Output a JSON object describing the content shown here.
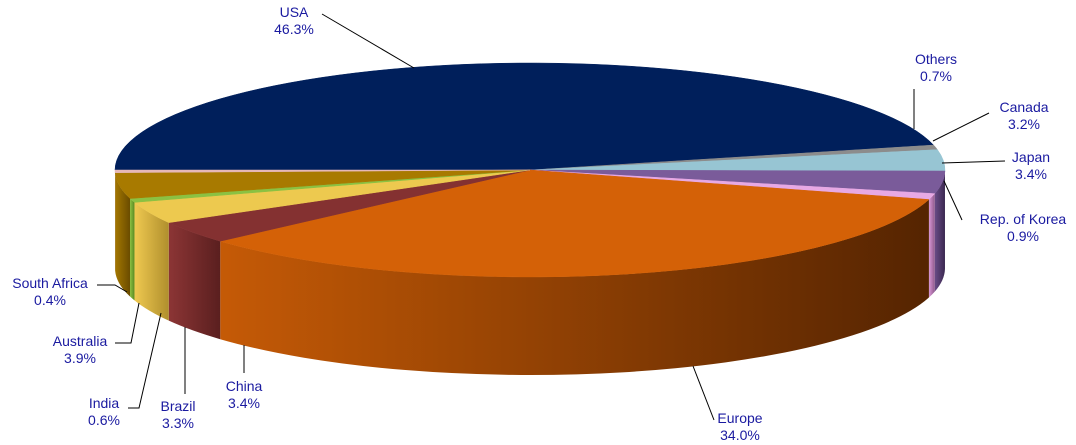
{
  "chart_data": {
    "type": "pie",
    "style": "3d",
    "start_angle_deg": 180,
    "direction": "clockwise",
    "slices": [
      {
        "label": "USA",
        "pct_text": "46.3%",
        "value": 46.3,
        "color": "#001f5b",
        "side": "#001a4e",
        "side_dark": "#000c28"
      },
      {
        "label": "Others",
        "pct_text": "0.7%",
        "value": 0.7,
        "color": "#8c8c8c",
        "side": "#7a7a7a",
        "side_dark": "#4a4a4a"
      },
      {
        "label": "Canada",
        "pct_text": "3.2%",
        "value": 3.2,
        "color": "#97c5d3",
        "side": "#86b4c2",
        "side_dark": "#4f7481"
      },
      {
        "label": "Japan",
        "pct_text": "3.4%",
        "value": 3.4,
        "color": "#7a5b9a",
        "side": "#6a4c87",
        "side_dark": "#3a2850"
      },
      {
        "label": "Rep. of Korea",
        "pct_text": "0.9%",
        "value": 0.9,
        "color": "#e7a9e4",
        "side": "#d996d6",
        "side_dark": "#8f5a8c"
      },
      {
        "label": "Europe",
        "pct_text": "34.0%",
        "value": 34.0,
        "color": "#d46107",
        "side": "#c55a06",
        "side_dark": "#552401"
      },
      {
        "label": "China",
        "pct_text": "3.4%",
        "value": 3.4,
        "color": "#843131",
        "side": "#8c3535",
        "side_dark": "#5a1f1f"
      },
      {
        "label": "Brazil",
        "pct_text": "3.3%",
        "value": 3.3,
        "color": "#edc94f",
        "side": "#efc950",
        "side_dark": "#b08f2d"
      },
      {
        "label": "India",
        "pct_text": "0.6%",
        "value": 0.6,
        "color": "#8bc142",
        "side": "#8bc142",
        "side_dark": "#5a8a22"
      },
      {
        "label": "Australia",
        "pct_text": "3.9%",
        "value": 3.9,
        "color": "#a87a00",
        "side": "#a47700",
        "side_dark": "#6a4c00"
      },
      {
        "label": "South Africa",
        "pct_text": "0.4%",
        "value": 0.4,
        "color": "#e6b8b8",
        "side": "#d6a6a6",
        "side_dark": "#8a6262"
      }
    ],
    "label_color": "#1a1aa0"
  }
}
